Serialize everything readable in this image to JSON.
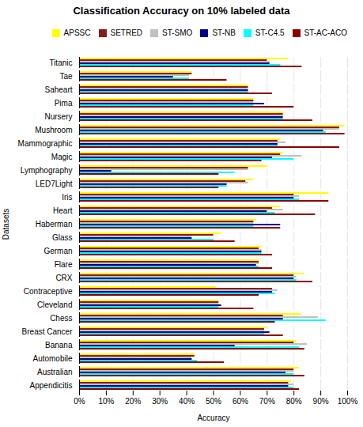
{
  "chart_data": {
    "type": "bar",
    "orientation": "horizontal",
    "title": "Classification Accuracy on 10% labeled data",
    "xlabel": "Accuracy",
    "ylabel": "Datasets",
    "categories": [
      "Titanic",
      "Tae",
      "Saheart",
      "Pima",
      "Nursery",
      "Mushroom",
      "Mammographic",
      "Magic",
      "Lymphography",
      "LED7Light",
      "Iris",
      "Heart",
      "Haberman",
      "Glass",
      "German",
      "Flare",
      "CRX",
      "Contraceptive",
      "Cleveland",
      "Chess",
      "Breast Cancer",
      "Banana",
      "Automobile",
      "Australian",
      "Appendicitis"
    ],
    "series": [
      {
        "name": "APSSC",
        "color": "#FFFF00",
        "values": [
          78,
          42,
          63,
          65,
          76,
          99,
          75,
          76,
          70,
          65,
          93,
          75,
          66,
          53,
          68,
          67,
          84,
          51,
          52,
          83,
          70,
          81,
          43,
          82,
          79
        ]
      },
      {
        "name": "SETRED",
        "color": "#8B1A1A",
        "values": [
          70,
          42,
          63,
          65,
          76,
          97,
          74,
          75,
          63,
          62,
          80,
          72,
          65,
          50,
          67,
          67,
          80,
          72,
          52,
          76,
          69,
          80,
          43,
          80,
          78
        ]
      },
      {
        "name": "ST-SMO",
        "color": "#C0C0C0",
        "values": [
          71,
          41,
          63,
          65,
          76,
          97,
          77,
          83,
          63,
          63,
          82,
          76,
          65,
          42,
          68,
          67,
          81,
          74,
          52,
          89,
          69,
          85,
          42,
          80,
          80
        ]
      },
      {
        "name": "ST-NB",
        "color": "#00008B",
        "values": [
          71,
          35,
          63,
          69,
          76,
          91,
          74,
          72,
          12,
          55,
          80,
          70,
          75,
          42,
          68,
          66,
          80,
          72,
          53,
          76,
          71,
          58,
          42,
          77,
          78
        ]
      },
      {
        "name": "ST-C4.5",
        "color": "#00FFFF",
        "values": [
          75,
          41,
          63,
          65,
          76,
          92,
          74,
          80,
          58,
          55,
          82,
          73,
          65,
          50,
          68,
          67,
          81,
          73,
          52,
          92,
          69,
          82,
          44,
          80,
          80
        ]
      },
      {
        "name": "ST-AC-ACO",
        "color": "#8B0000",
        "values": [
          83,
          55,
          72,
          80,
          87,
          99,
          97,
          68,
          52,
          52,
          93,
          88,
          75,
          58,
          72,
          72,
          87,
          67,
          65,
          73,
          76,
          84,
          54,
          84,
          82
        ]
      }
    ],
    "xlim": [
      0,
      100
    ],
    "xticks": [
      {
        "value": 0,
        "label": "0%"
      },
      {
        "value": 10,
        "label": "10%"
      },
      {
        "value": 20,
        "label": "20%"
      },
      {
        "value": 30,
        "label": "30%"
      },
      {
        "value": 40,
        "label": "40%"
      },
      {
        "value": 50,
        "label": "50%"
      },
      {
        "value": 60,
        "label": "60%"
      },
      {
        "value": 70,
        "label": "70%"
      },
      {
        "value": 80,
        "label": "80%"
      },
      {
        "value": 90,
        "label": "90%"
      },
      {
        "value": 100,
        "label": "100%"
      }
    ],
    "grid": true,
    "legend": "upper right"
  }
}
